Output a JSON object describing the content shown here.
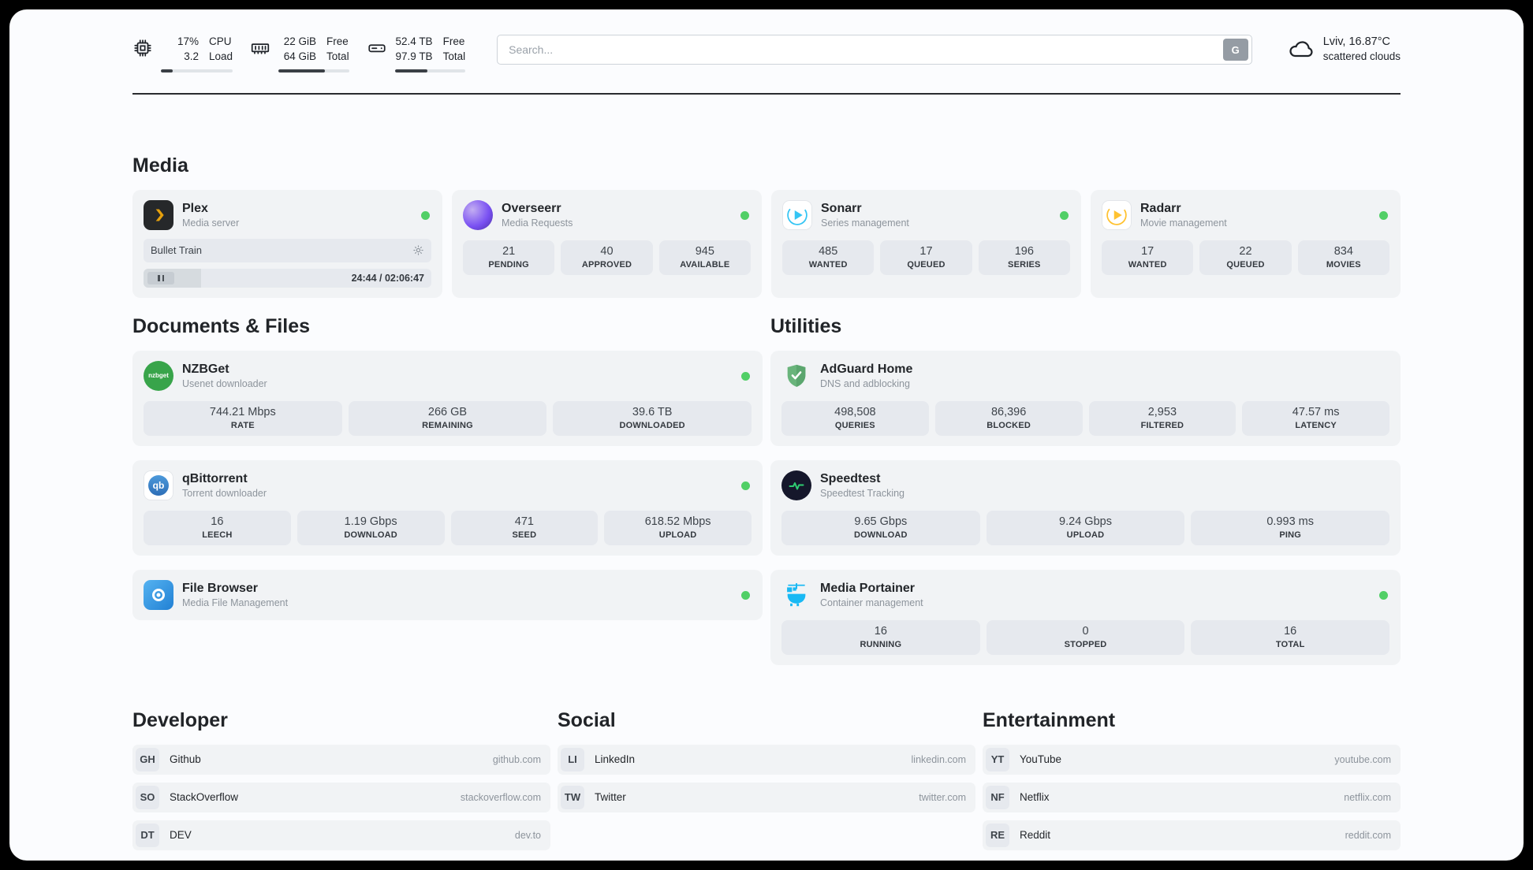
{
  "header": {
    "cpu": {
      "values": [
        "17%",
        "3.2"
      ],
      "labels": [
        "CPU",
        "Load"
      ],
      "bar_percent": 17
    },
    "ram": {
      "values": [
        "22 GiB",
        "64 GiB"
      ],
      "labels": [
        "Free",
        "Total"
      ],
      "bar_percent": 66
    },
    "disk": {
      "values": [
        "52.4 TB",
        "97.9 TB"
      ],
      "labels": [
        "Free",
        "Total"
      ],
      "bar_percent": 46
    },
    "search": {
      "placeholder": "Search...",
      "button_label": "G"
    },
    "weather": {
      "location": "Lviv, 16.87°C",
      "condition": "scattered clouds"
    }
  },
  "sections": {
    "media": "Media",
    "documents": "Documents & Files",
    "utilities": "Utilities",
    "developer": "Developer",
    "social": "Social",
    "entertainment": "Entertainment"
  },
  "apps": {
    "plex": {
      "name": "Plex",
      "subtitle": "Media server",
      "now_playing": "Bullet Train",
      "time": "24:44 / 02:06:47",
      "progress_percent": 20
    },
    "overseerr": {
      "name": "Overseerr",
      "subtitle": "Media Requests",
      "stats": [
        {
          "value": "21",
          "label": "PENDING"
        },
        {
          "value": "40",
          "label": "APPROVED"
        },
        {
          "value": "945",
          "label": "AVAILABLE"
        }
      ]
    },
    "sonarr": {
      "name": "Sonarr",
      "subtitle": "Series management",
      "stats": [
        {
          "value": "485",
          "label": "WANTED"
        },
        {
          "value": "17",
          "label": "QUEUED"
        },
        {
          "value": "196",
          "label": "SERIES"
        }
      ]
    },
    "radarr": {
      "name": "Radarr",
      "subtitle": "Movie management",
      "stats": [
        {
          "value": "17",
          "label": "WANTED"
        },
        {
          "value": "22",
          "label": "QUEUED"
        },
        {
          "value": "834",
          "label": "MOVIES"
        }
      ]
    },
    "nzbget": {
      "name": "NZBGet",
      "subtitle": "Usenet downloader",
      "icon_text": "nzbget",
      "stats": [
        {
          "value": "744.21 Mbps",
          "label": "RATE"
        },
        {
          "value": "266 GB",
          "label": "REMAINING"
        },
        {
          "value": "39.6 TB",
          "label": "DOWNLOADED"
        }
      ]
    },
    "qbittorrent": {
      "name": "qBittorrent",
      "subtitle": "Torrent downloader",
      "icon_text": "qb",
      "stats": [
        {
          "value": "16",
          "label": "LEECH"
        },
        {
          "value": "1.19 Gbps",
          "label": "DOWNLOAD"
        },
        {
          "value": "471",
          "label": "SEED"
        },
        {
          "value": "618.52 Mbps",
          "label": "UPLOAD"
        }
      ]
    },
    "filebrowser": {
      "name": "File Browser",
      "subtitle": "Media File Management"
    },
    "adguard": {
      "name": "AdGuard Home",
      "subtitle": "DNS and adblocking",
      "stats": [
        {
          "value": "498,508",
          "label": "QUERIES"
        },
        {
          "value": "86,396",
          "label": "BLOCKED"
        },
        {
          "value": "2,953",
          "label": "FILTERED"
        },
        {
          "value": "47.57 ms",
          "label": "LATENCY"
        }
      ]
    },
    "speedtest": {
      "name": "Speedtest",
      "subtitle": "Speedtest Tracking",
      "stats": [
        {
          "value": "9.65 Gbps",
          "label": "DOWNLOAD"
        },
        {
          "value": "9.24 Gbps",
          "label": "UPLOAD"
        },
        {
          "value": "0.993 ms",
          "label": "PING"
        }
      ]
    },
    "portainer": {
      "name": "Media Portainer",
      "subtitle": "Container management",
      "stats": [
        {
          "value": "16",
          "label": "RUNNING"
        },
        {
          "value": "0",
          "label": "STOPPED"
        },
        {
          "value": "16",
          "label": "TOTAL"
        }
      ]
    }
  },
  "bookmarks": {
    "developer": [
      {
        "badge": "GH",
        "name": "Github",
        "url": "github.com"
      },
      {
        "badge": "SO",
        "name": "StackOverflow",
        "url": "stackoverflow.com"
      },
      {
        "badge": "DT",
        "name": "DEV",
        "url": "dev.to"
      }
    ],
    "social": [
      {
        "badge": "LI",
        "name": "LinkedIn",
        "url": "linkedin.com"
      },
      {
        "badge": "TW",
        "name": "Twitter",
        "url": "twitter.com"
      }
    ],
    "entertainment": [
      {
        "badge": "YT",
        "name": "YouTube",
        "url": "youtube.com"
      },
      {
        "badge": "NF",
        "name": "Netflix",
        "url": "netflix.com"
      },
      {
        "badge": "RE",
        "name": "Reddit",
        "url": "reddit.com"
      }
    ]
  }
}
